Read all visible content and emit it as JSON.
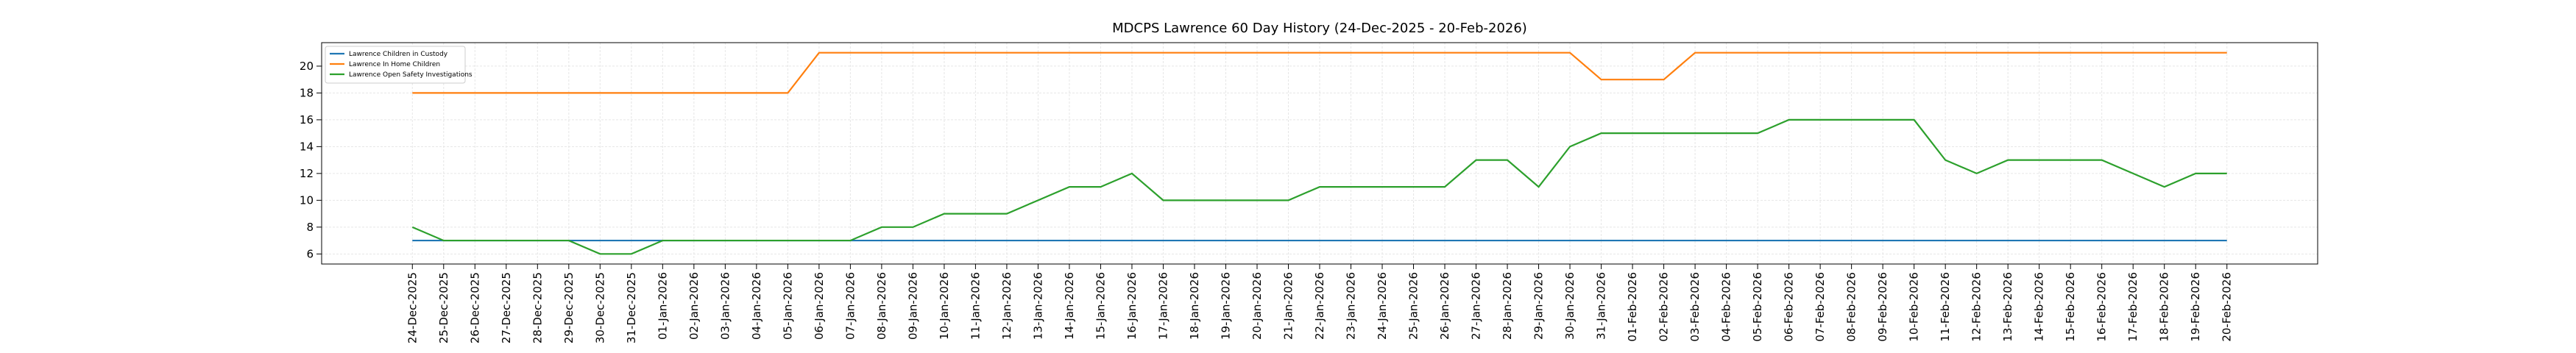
{
  "chart_data": {
    "type": "line",
    "title": "MDCPS Lawrence 60 Day History (24-Dec-2025 - 20-Feb-2026)",
    "categories": [
      "24-Dec-2025",
      "25-Dec-2025",
      "26-Dec-2025",
      "27-Dec-2025",
      "28-Dec-2025",
      "29-Dec-2025",
      "30-Dec-2025",
      "31-Dec-2025",
      "01-Jan-2026",
      "02-Jan-2026",
      "03-Jan-2026",
      "04-Jan-2026",
      "05-Jan-2026",
      "06-Jan-2026",
      "07-Jan-2026",
      "08-Jan-2026",
      "09-Jan-2026",
      "10-Jan-2026",
      "11-Jan-2026",
      "12-Jan-2026",
      "13-Jan-2026",
      "14-Jan-2026",
      "15-Jan-2026",
      "16-Jan-2026",
      "17-Jan-2026",
      "18-Jan-2026",
      "19-Jan-2026",
      "20-Jan-2026",
      "21-Jan-2026",
      "22-Jan-2026",
      "23-Jan-2026",
      "24-Jan-2026",
      "25-Jan-2026",
      "26-Jan-2026",
      "27-Jan-2026",
      "28-Jan-2026",
      "29-Jan-2026",
      "30-Jan-2026",
      "31-Jan-2026",
      "01-Feb-2026",
      "02-Feb-2026",
      "03-Feb-2026",
      "04-Feb-2026",
      "05-Feb-2026",
      "06-Feb-2026",
      "07-Feb-2026",
      "08-Feb-2026",
      "09-Feb-2026",
      "10-Feb-2026",
      "11-Feb-2026",
      "12-Feb-2026",
      "13-Feb-2026",
      "14-Feb-2026",
      "15-Feb-2026",
      "16-Feb-2026",
      "17-Feb-2026",
      "18-Feb-2026",
      "19-Feb-2026",
      "20-Feb-2026"
    ],
    "series": [
      {
        "name": "Lawrence Children in Custody",
        "color": "#1f77b4",
        "values": [
          7,
          7,
          7,
          7,
          7,
          7,
          7,
          7,
          7,
          7,
          7,
          7,
          7,
          7,
          7,
          7,
          7,
          7,
          7,
          7,
          7,
          7,
          7,
          7,
          7,
          7,
          7,
          7,
          7,
          7,
          7,
          7,
          7,
          7,
          7,
          7,
          7,
          7,
          7,
          7,
          7,
          7,
          7,
          7,
          7,
          7,
          7,
          7,
          7,
          7,
          7,
          7,
          7,
          7,
          7,
          7,
          7,
          7,
          7
        ]
      },
      {
        "name": "Lawrence In Home Children",
        "color": "#ff7f0e",
        "values": [
          18,
          18,
          18,
          18,
          18,
          18,
          18,
          18,
          18,
          18,
          18,
          18,
          18,
          21,
          21,
          21,
          21,
          21,
          21,
          21,
          21,
          21,
          21,
          21,
          21,
          21,
          21,
          21,
          21,
          21,
          21,
          21,
          21,
          21,
          21,
          21,
          21,
          21,
          19,
          19,
          19,
          21,
          21,
          21,
          21,
          21,
          21,
          21,
          21,
          21,
          21,
          21,
          21,
          21,
          21,
          21,
          21,
          21,
          21
        ]
      },
      {
        "name": "Lawrence Open Safety Investigations",
        "color": "#2ca02c",
        "values": [
          8,
          7,
          7,
          7,
          7,
          7,
          6,
          6,
          7,
          7,
          7,
          7,
          7,
          7,
          7,
          8,
          8,
          9,
          9,
          9,
          10,
          11,
          11,
          12,
          10,
          10,
          10,
          10,
          10,
          11,
          11,
          11,
          11,
          11,
          13,
          13,
          11,
          14,
          15,
          15,
          15,
          15,
          15,
          15,
          16,
          16,
          16,
          16,
          16,
          13,
          12,
          13,
          13,
          13,
          13,
          12,
          11,
          12,
          12
        ]
      }
    ],
    "ylim": [
      5.25,
      21.75
    ],
    "yticks": [
      6,
      8,
      10,
      12,
      14,
      16,
      18,
      20
    ],
    "grid": true,
    "legend": "upper left"
  }
}
